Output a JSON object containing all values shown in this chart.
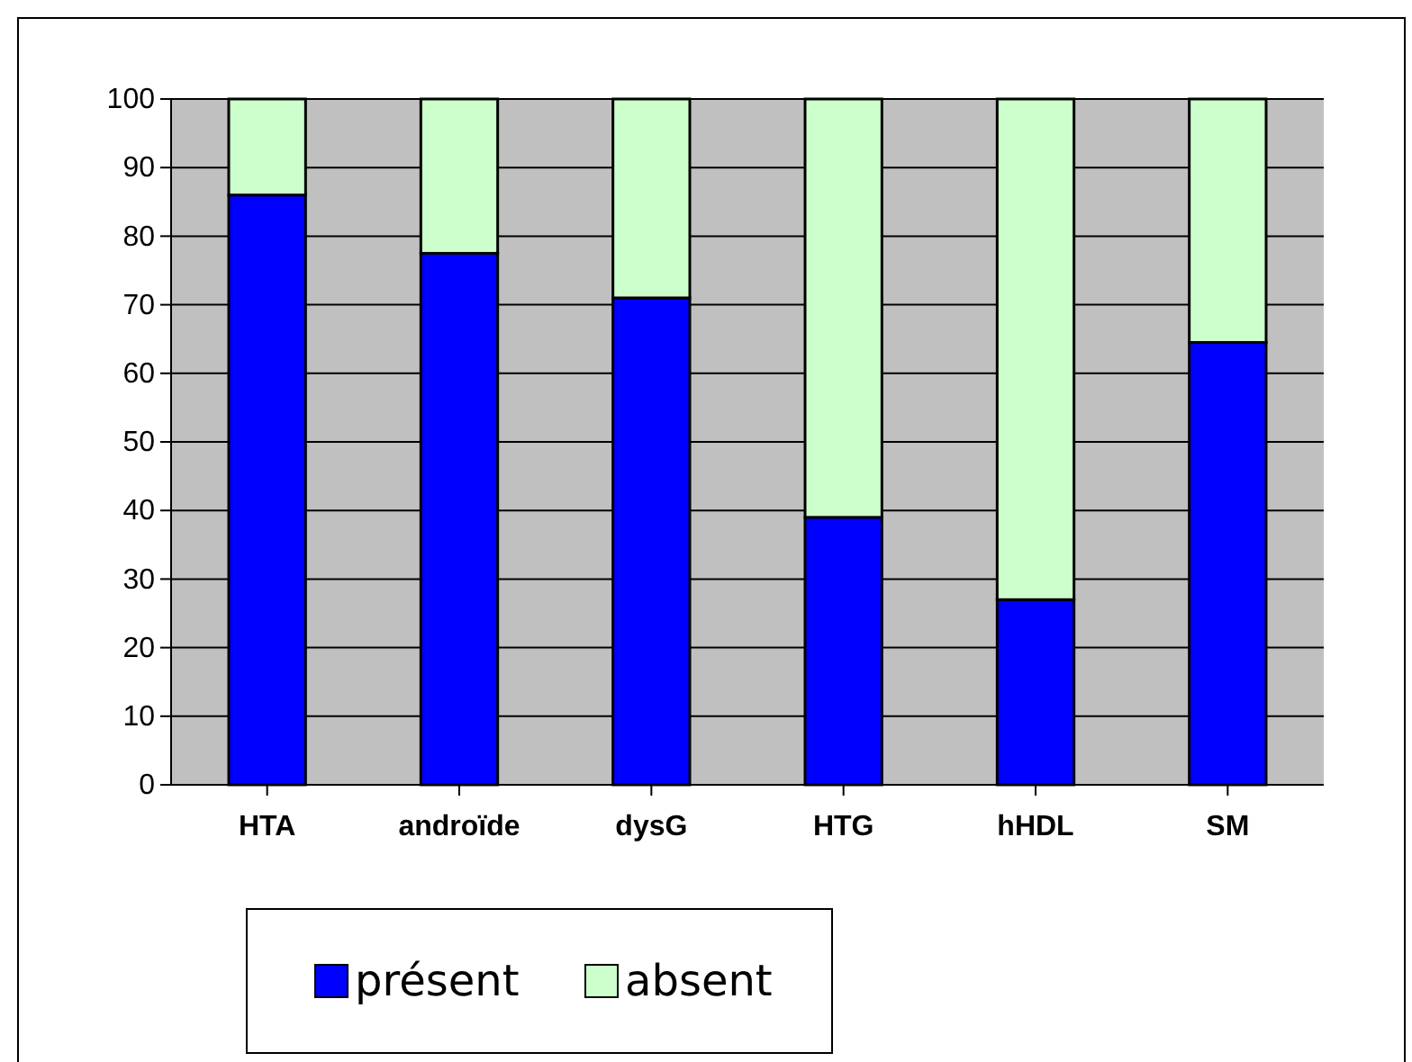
{
  "chart_data": {
    "type": "bar",
    "stacked": true,
    "categories": [
      "HTA",
      "androïde",
      "dysG",
      "HTG",
      "hHDL",
      "SM"
    ],
    "series": [
      {
        "name": "présent",
        "color": "#0000ff",
        "values": [
          86,
          77.5,
          71,
          39,
          27,
          64.5
        ]
      },
      {
        "name": "absent",
        "color": "#ccffcc",
        "values": [
          14,
          22.5,
          29,
          61,
          73,
          35.5
        ]
      }
    ],
    "ylim": [
      0,
      100
    ],
    "yticks": [
      0,
      10,
      20,
      30,
      40,
      50,
      60,
      70,
      80,
      90,
      100
    ],
    "grid": "y",
    "legend": "bottom"
  }
}
